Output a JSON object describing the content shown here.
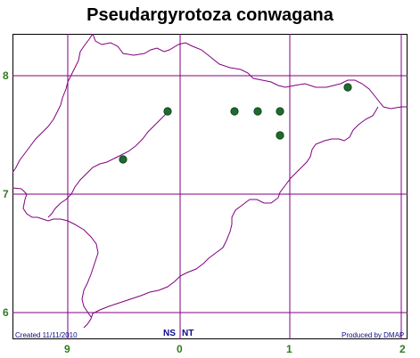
{
  "map": {
    "title": "Pseudargyrotoza conwagana",
    "y_labels": [
      "8",
      "7",
      "6"
    ],
    "x_labels": [
      "9",
      "0",
      "1",
      "2"
    ],
    "grid_codes": [
      "NS",
      "NT"
    ],
    "created_text": "Created 11/11/2010",
    "produced_text": "Produced by DMAP",
    "colors": {
      "grid_line": "#800080",
      "coastline": "#800080",
      "record_dot": "#1e6b2e",
      "axis_label": "#2e7d1f",
      "credit_text": "#0a0a8a"
    },
    "records": [
      {
        "count": 7
      }
    ]
  }
}
